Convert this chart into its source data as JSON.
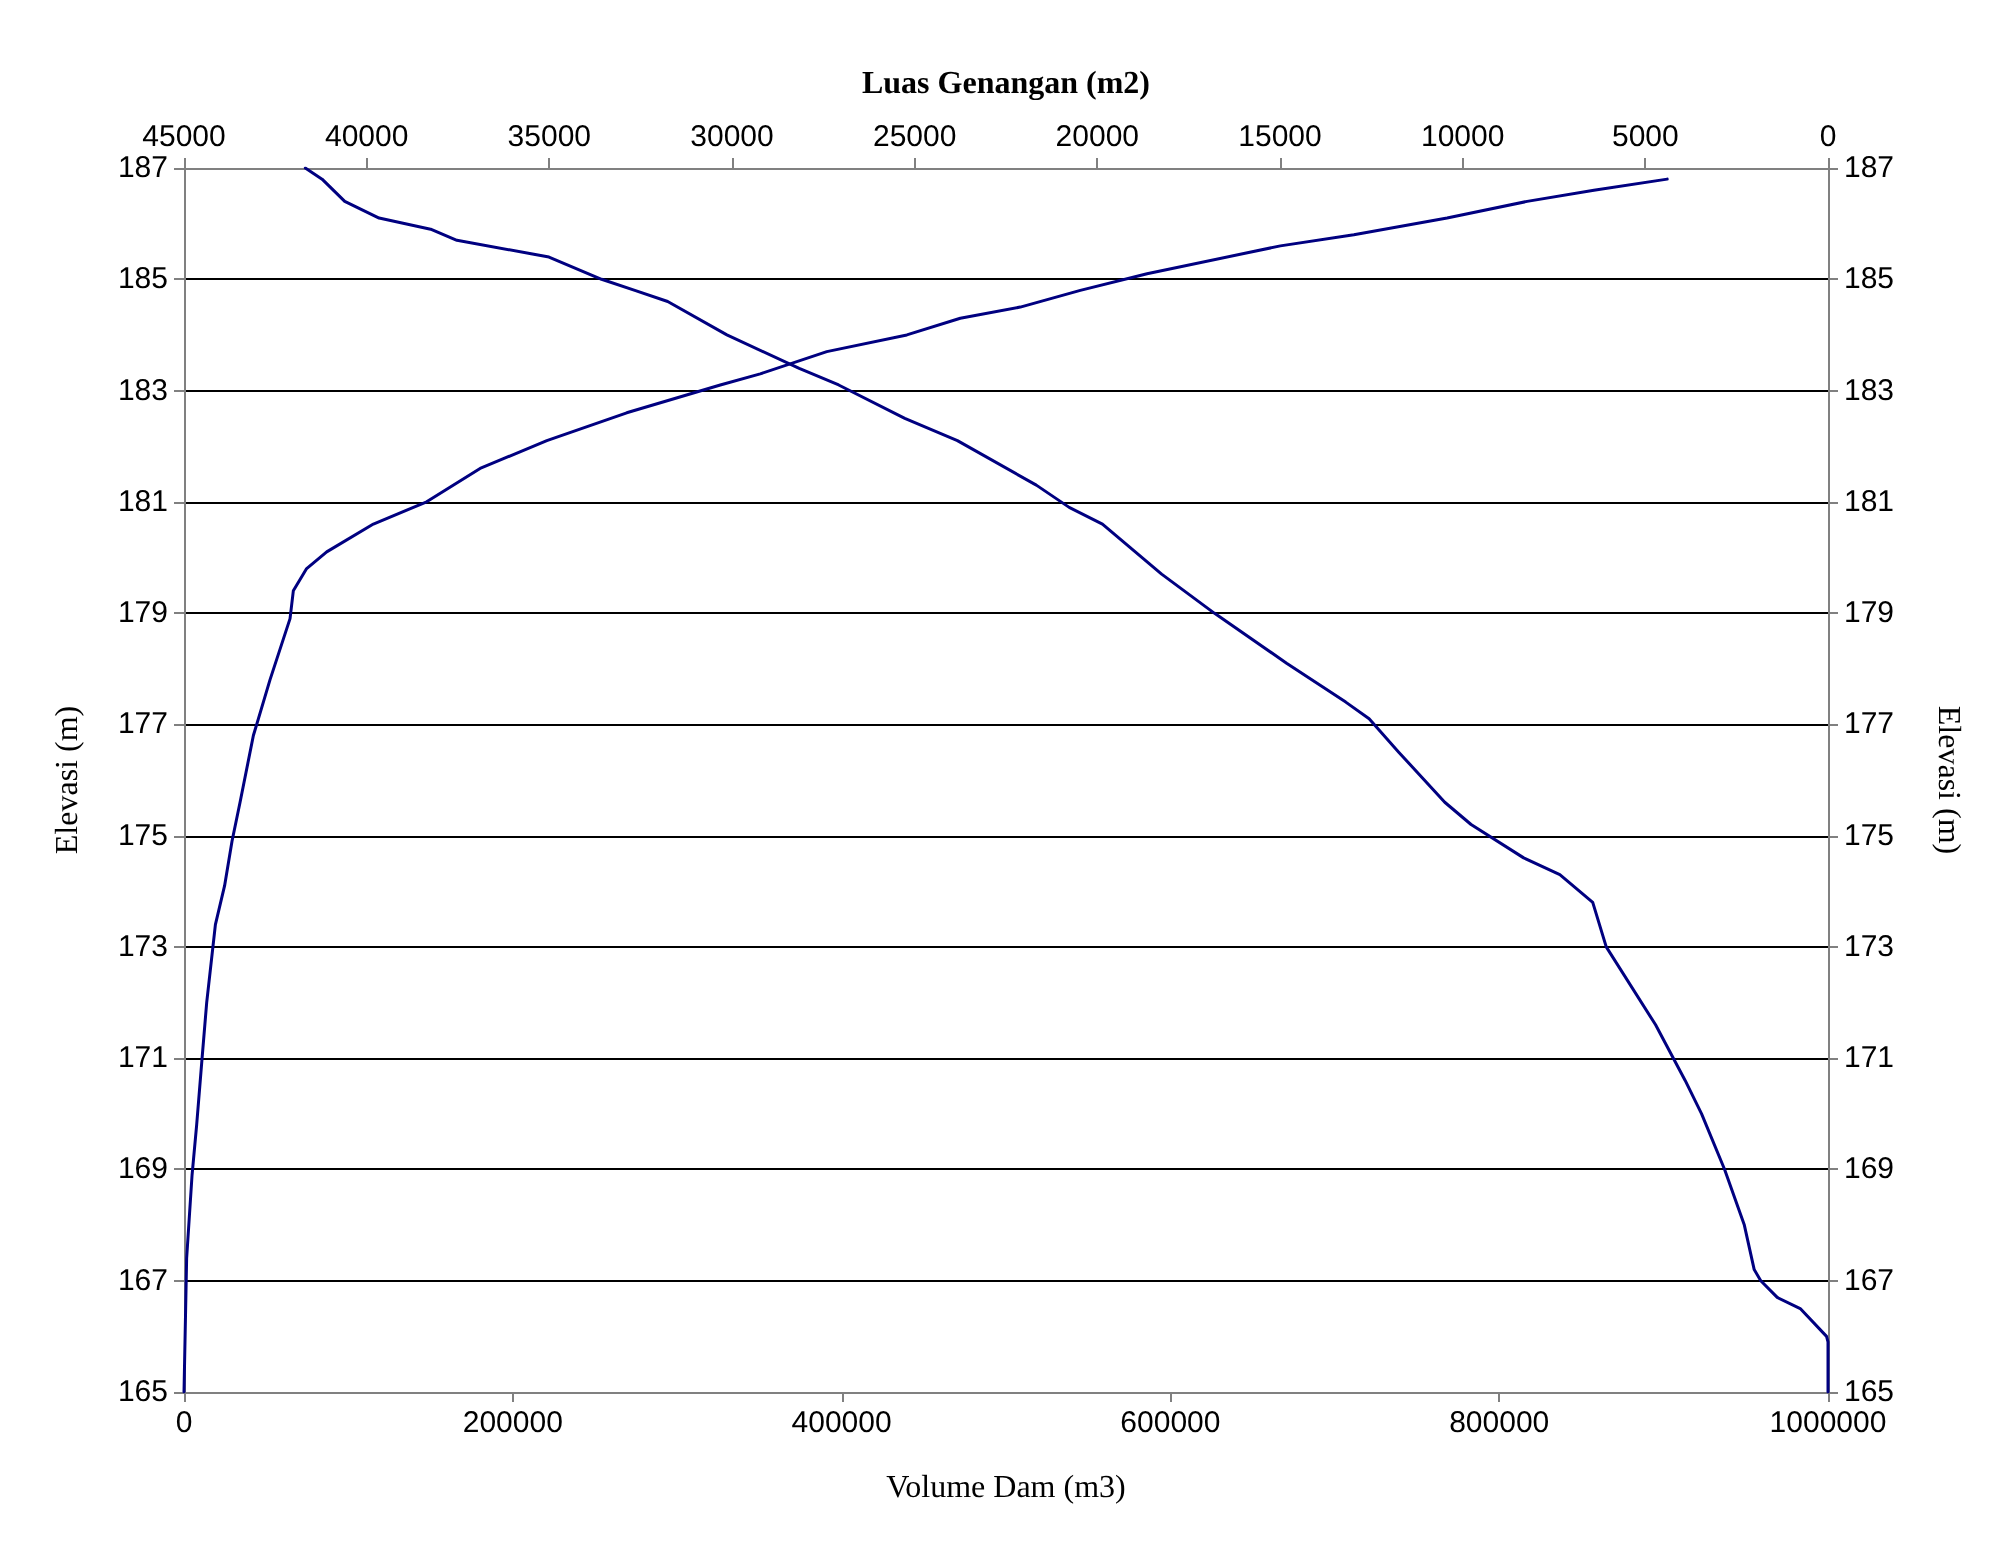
{
  "chart_data": {
    "type": "line",
    "xlabel": "Volume Dam (m3)",
    "x2label": "Luas Genangan (m2)",
    "ylabel": "Elevasi (m)",
    "y2label": "Elevasi (m)",
    "xlim": [
      0,
      1000000
    ],
    "xticks": [
      0,
      200000,
      400000,
      600000,
      800000,
      1000000
    ],
    "x2lim": [
      45000,
      0
    ],
    "x2ticks": [
      45000,
      40000,
      35000,
      30000,
      25000,
      20000,
      15000,
      10000,
      5000,
      0
    ],
    "ylim": [
      165,
      187
    ],
    "yticks": [
      165,
      167,
      169,
      171,
      173,
      175,
      177,
      179,
      181,
      183,
      185,
      187
    ],
    "y2lim": [
      165,
      187
    ],
    "y2ticks": [
      165,
      167,
      169,
      171,
      173,
      175,
      177,
      179,
      181,
      183,
      185,
      187
    ],
    "grid": "y",
    "marker": "none",
    "line_style": "solid",
    "series": [
      {
        "color": "#000080",
        "x": [
          0,
          1600,
          4900,
          7700,
          11000,
          13800,
          19100,
          24700,
          29200,
          34100,
          42200,
          52300,
          64500,
          66500,
          74600,
          86800,
          115200,
          147600,
          180100,
          220700,
          269300,
          326200,
          350500,
          391000,
          439700,
          472200,
          508700,
          545200,
          585800,
          666900,
          711600,
          768300,
          817000,
          857600,
          902200
        ],
        "values": [
          165,
          167.4,
          168.9,
          169.8,
          171,
          172,
          173.4,
          174.1,
          174.9,
          175.6,
          176.8,
          177.8,
          178.9,
          179.4,
          179.8,
          180.1,
          180.6,
          181,
          181.6,
          182.1,
          182.6,
          183.1,
          183.3,
          183.7,
          184,
          184.3,
          184.5,
          184.8,
          185.1,
          185.6,
          185.8,
          186.1,
          186.4,
          186.6,
          186.8
        ]
      },
      {
        "color": "#000080",
        "axis": "x2",
        "x": [
          0,
          0,
          40,
          760,
          1390,
          1840,
          2020,
          2290,
          2830,
          3460,
          3910,
          4720,
          6070,
          6440,
          7340,
          8330,
          9770,
          10490,
          11750,
          12560,
          13200,
          14820,
          16800,
          18240,
          19860,
          20770,
          21670,
          23830,
          25270,
          27080,
          28160,
          30140,
          31760,
          32660,
          33570,
          35010,
          37530,
          38250,
          39660,
          40600,
          41220,
          41680
        ],
        "values": [
          165,
          165.9,
          166,
          166.5,
          166.7,
          167,
          167.2,
          168,
          169,
          170,
          170.6,
          171.6,
          173,
          173.8,
          174.3,
          174.6,
          175.2,
          175.6,
          176.5,
          177.1,
          177.4,
          178.1,
          179,
          179.7,
          180.6,
          180.9,
          181.3,
          182.1,
          182.5,
          183.1,
          183.4,
          184,
          184.6,
          184.8,
          185,
          185.4,
          185.7,
          185.9,
          186.1,
          186.4,
          186.8,
          187
        ]
      }
    ]
  }
}
